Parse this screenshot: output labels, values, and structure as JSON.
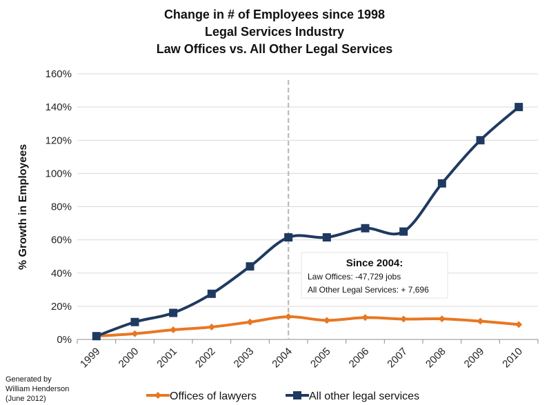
{
  "chart_data": {
    "type": "line",
    "title": [
      "Change in # of Employees since 1998",
      "Legal Services Industry",
      "Law Offices vs.  All Other Legal Services"
    ],
    "ylabel": "% Growth in Employees",
    "xlabel": "",
    "categories": [
      "1999",
      "2000",
      "2001",
      "2002",
      "2003",
      "2004",
      "2005",
      "2006",
      "2007",
      "2008",
      "2009",
      "2010"
    ],
    "ylim": [
      0,
      160
    ],
    "yticks": [
      "0%",
      "20%",
      "40%",
      "60%",
      "80%",
      "100%",
      "120%",
      "140%",
      "160%"
    ],
    "grid": true,
    "legend_position": "bottom",
    "series": [
      {
        "name": "Offices of lawyers",
        "color": "#E87722",
        "marker": "diamond",
        "values": [
          2,
          3.5,
          5.8,
          7.5,
          10.5,
          13.7,
          11.5,
          13.2,
          12.3,
          12.4,
          11,
          9
        ]
      },
      {
        "name": "All other legal services",
        "color": "#1F3A60",
        "marker": "square",
        "values": [
          2,
          10.5,
          16,
          27.5,
          44,
          61.5,
          61.5,
          67,
          65,
          94,
          120,
          140
        ]
      }
    ],
    "reference_line": {
      "category": "2004",
      "color": "#BBBBBB"
    },
    "annotation": {
      "title": "Since 2004:",
      "lines": [
        "Law Offices: -47,729 jobs",
        "All Other Legal Services: + 7,696"
      ]
    }
  },
  "credit": [
    "Generated by",
    "William Henderson",
    "(June 2012)"
  ]
}
